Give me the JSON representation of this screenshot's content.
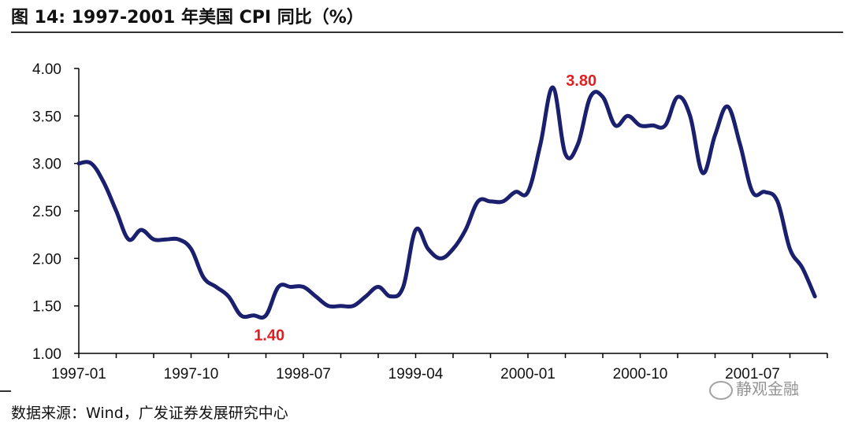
{
  "title": "图 14:  1997-2001 年美国 CPI 同比（%）",
  "source": "数据来源：Wind，广发证券发展研究中心",
  "watermark": "静观金融",
  "colors": {
    "line": "#1a1f6e",
    "annotation": "#e02020",
    "axis": "#000000",
    "text": "#111111"
  },
  "chart_data": {
    "type": "line",
    "title": "1997-2001 年美国 CPI 同比（%）",
    "xlabel": "",
    "ylabel": "",
    "ylim": [
      1.0,
      4.0
    ],
    "yticks": [
      "1.00",
      "1.50",
      "2.00",
      "2.50",
      "3.00",
      "3.50",
      "4.00"
    ],
    "xticks": [
      "1997-01",
      "1997-10",
      "1998-07",
      "1999-04",
      "2000-01",
      "2000-10",
      "2001-07"
    ],
    "grid": false,
    "legend": "none",
    "series": [
      {
        "name": "",
        "x": [
          "1997-01",
          "1997-02",
          "1997-03",
          "1997-04",
          "1997-05",
          "1997-06",
          "1997-07",
          "1997-08",
          "1997-09",
          "1997-10",
          "1997-11",
          "1997-12",
          "1998-01",
          "1998-02",
          "1998-03",
          "1998-04",
          "1998-05",
          "1998-06",
          "1998-07",
          "1998-08",
          "1998-09",
          "1998-10",
          "1998-11",
          "1998-12",
          "1999-01",
          "1999-02",
          "1999-03",
          "1999-04",
          "1999-05",
          "1999-06",
          "1999-07",
          "1999-08",
          "1999-09",
          "1999-10",
          "1999-11",
          "1999-12",
          "2000-01",
          "2000-02",
          "2000-03",
          "2000-04",
          "2000-05",
          "2000-06",
          "2000-07",
          "2000-08",
          "2000-09",
          "2000-10",
          "2000-11",
          "2000-12",
          "2001-01",
          "2001-02",
          "2001-03",
          "2001-04",
          "2001-05",
          "2001-06",
          "2001-07",
          "2001-08",
          "2001-09",
          "2001-10",
          "2001-11",
          "2001-12"
        ],
        "values": [
          3.0,
          3.0,
          2.8,
          2.5,
          2.2,
          2.3,
          2.2,
          2.2,
          2.2,
          2.1,
          1.8,
          1.7,
          1.6,
          1.4,
          1.4,
          1.4,
          1.7,
          1.7,
          1.7,
          1.6,
          1.5,
          1.5,
          1.5,
          1.6,
          1.7,
          1.6,
          1.7,
          2.3,
          2.1,
          2.0,
          2.1,
          2.3,
          2.6,
          2.6,
          2.6,
          2.7,
          2.7,
          3.2,
          3.8,
          3.1,
          3.2,
          3.7,
          3.7,
          3.4,
          3.5,
          3.4,
          3.4,
          3.4,
          3.7,
          3.5,
          2.9,
          3.3,
          3.6,
          3.2,
          2.7,
          2.7,
          2.6,
          2.1,
          1.9,
          1.6
        ]
      }
    ],
    "annotations": [
      {
        "text": "3.80",
        "x": "2000-03",
        "y": 3.8
      },
      {
        "text": "1.40",
        "x": "1998-03",
        "y": 1.4
      }
    ]
  }
}
